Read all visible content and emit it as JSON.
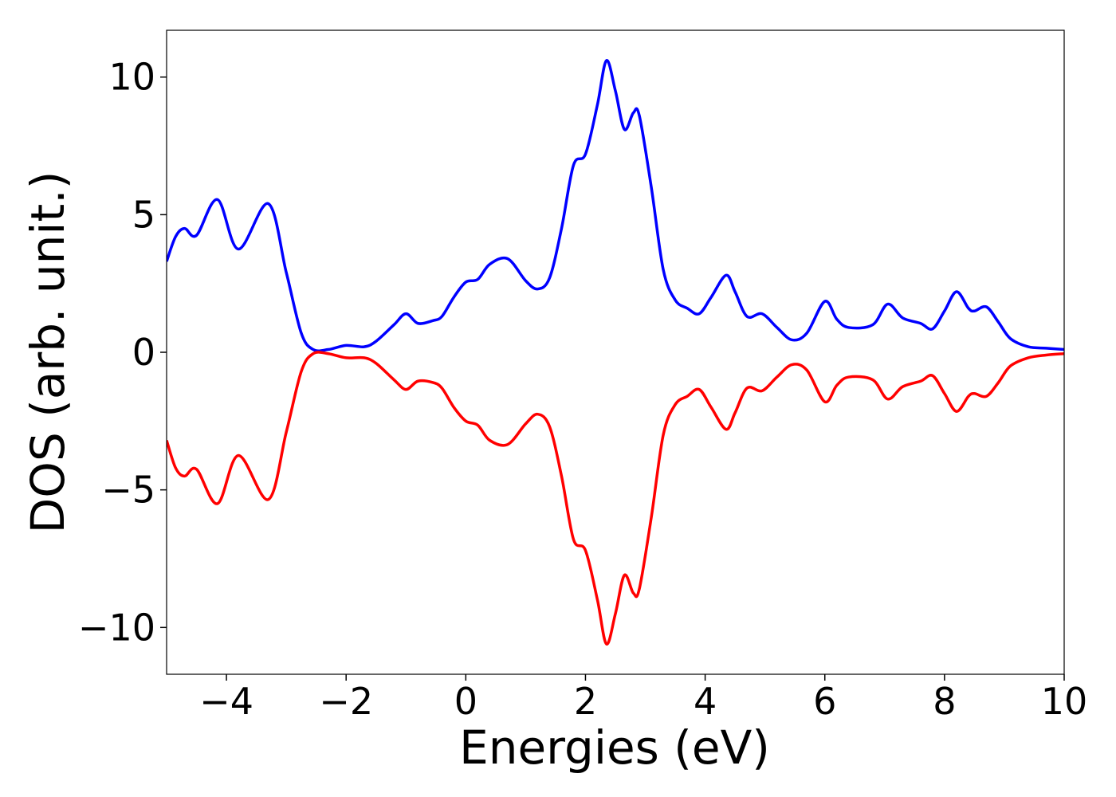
{
  "chart_data": {
    "type": "line",
    "xlabel": "Energies (eV)",
    "ylabel": "DOS (arb. unit.)",
    "x": [
      -5,
      -4.85,
      -4.7,
      -4.5,
      -4.15,
      -3.8,
      -3.3,
      -3.0,
      -2.75,
      -2.55,
      -2.3,
      -2.0,
      -1.7,
      -1.5,
      -1.2,
      -1.0,
      -0.8,
      -0.55,
      -0.4,
      -0.2,
      0,
      0.2,
      0.4,
      0.7,
      1.0,
      1.2,
      1.4,
      1.6,
      1.8,
      2.0,
      2.2,
      2.35,
      2.5,
      2.65,
      2.8,
      2.9,
      3.1,
      3.3,
      3.5,
      3.7,
      3.9,
      4.1,
      4.35,
      4.5,
      4.7,
      4.95,
      5.2,
      5.45,
      5.7,
      6.0,
      6.2,
      6.4,
      6.8,
      7.05,
      7.3,
      7.6,
      7.8,
      8.0,
      8.2,
      8.4,
      8.5,
      8.7,
      8.9,
      9.1,
      9.4,
      9.7,
      10
    ],
    "series": [
      {
        "color": "#0000ff",
        "values": [
          3.3,
          4.2,
          4.5,
          4.25,
          5.55,
          3.75,
          5.4,
          2.9,
          0.7,
          0.1,
          0.1,
          0.25,
          0.2,
          0.4,
          1.0,
          1.4,
          1.05,
          1.15,
          1.3,
          2.0,
          2.55,
          2.65,
          3.2,
          3.4,
          2.6,
          2.3,
          2.7,
          4.5,
          6.8,
          7.2,
          9.0,
          10.6,
          9.5,
          8.1,
          8.7,
          8.6,
          6.0,
          3.0,
          1.9,
          1.6,
          1.4,
          2.0,
          2.8,
          2.2,
          1.3,
          1.4,
          0.9,
          0.45,
          0.7,
          1.85,
          1.2,
          0.9,
          1.0,
          1.75,
          1.25,
          1.05,
          0.85,
          1.5,
          2.2,
          1.6,
          1.5,
          1.65,
          1.1,
          0.5,
          0.2,
          0.15,
          0.1
        ]
      },
      {
        "color": "#ff0000",
        "values": [
          -3.2,
          -4.2,
          -4.5,
          -4.25,
          -5.5,
          -3.75,
          -5.35,
          -2.9,
          -0.7,
          -0.05,
          -0.05,
          -0.2,
          -0.2,
          -0.4,
          -1.0,
          -1.35,
          -1.05,
          -1.1,
          -1.3,
          -2.0,
          -2.5,
          -2.65,
          -3.2,
          -3.35,
          -2.6,
          -2.25,
          -2.7,
          -4.5,
          -6.8,
          -7.2,
          -9.0,
          -10.6,
          -9.5,
          -8.1,
          -8.75,
          -8.6,
          -6.0,
          -3.0,
          -1.9,
          -1.6,
          -1.35,
          -2.0,
          -2.8,
          -2.2,
          -1.3,
          -1.4,
          -0.9,
          -0.45,
          -0.65,
          -1.8,
          -1.2,
          -0.9,
          -1.0,
          -1.7,
          -1.25,
          -1.05,
          -0.85,
          -1.5,
          -2.15,
          -1.6,
          -1.5,
          -1.6,
          -1.1,
          -0.5,
          -0.2,
          -0.1,
          -0.05
        ]
      }
    ],
    "xlim": [
      -5,
      10
    ],
    "xticks": [
      {
        "value": -4,
        "label": "−4"
      },
      {
        "value": -2,
        "label": "−2"
      },
      0,
      2,
      4,
      6,
      8,
      10
    ],
    "ylim": [
      -11.7,
      11.7
    ],
    "yticks": [
      {
        "value": -10,
        "label": "−10"
      },
      {
        "value": -5,
        "label": "−5"
      },
      0,
      5,
      10
    ],
    "grid": false
  }
}
